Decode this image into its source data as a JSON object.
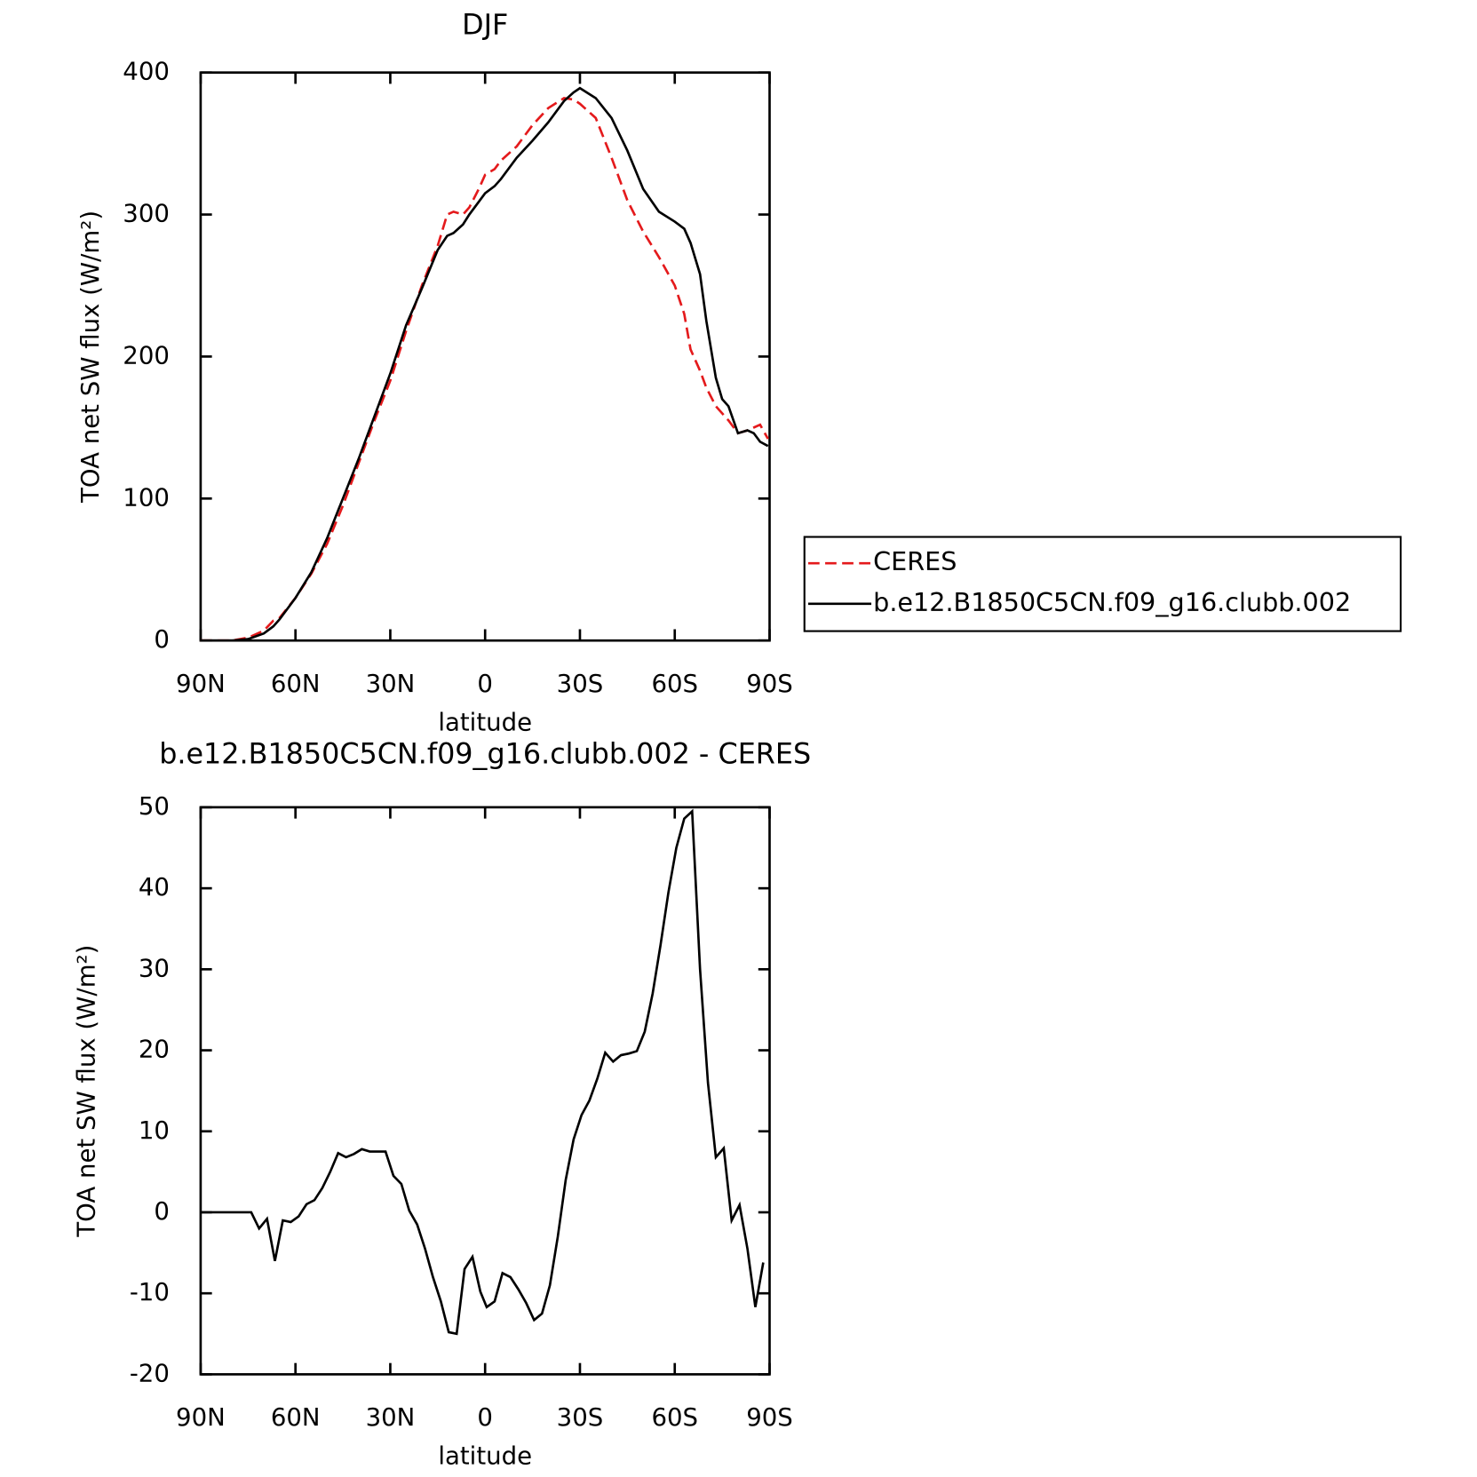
{
  "chart_data": [
    {
      "type": "line",
      "title": "DJF",
      "xlabel": "latitude",
      "ylabel": "TOA net SW flux (W/m²)",
      "x": [
        90,
        85,
        80,
        75,
        70,
        67,
        65,
        60,
        55,
        50,
        45,
        40,
        35,
        30,
        25,
        20,
        15,
        12,
        10,
        7,
        5,
        2,
        0,
        -3,
        -5,
        -10,
        -15,
        -20,
        -25,
        -28,
        -30,
        -35,
        -40,
        -45,
        -50,
        -55,
        -60,
        -63,
        -65,
        -68,
        -70,
        -73,
        -75,
        -77,
        -80,
        -83,
        -85,
        -87,
        -89.5
      ],
      "series": [
        {
          "name": "CERES",
          "color": "#e41a1c",
          "line_style": "dashed",
          "values": [
            0,
            0,
            0,
            2,
            7,
            14,
            16,
            30,
            47,
            68,
            95,
            125,
            155,
            183,
            218,
            250,
            278,
            300,
            302,
            300,
            305,
            318,
            328,
            332,
            338,
            348,
            363,
            375,
            382,
            381,
            378,
            368,
            340,
            310,
            288,
            270,
            250,
            230,
            205,
            190,
            178,
            165,
            160,
            155,
            146,
            148,
            150,
            152,
            142
          ]
        },
        {
          "name": "b.e12.B1850C5CN.f09_g16.clubb.002",
          "color": "#000000",
          "line_style": "solid",
          "values": [
            0,
            0,
            0,
            1,
            5,
            10,
            15,
            30,
            48,
            72,
            100,
            128,
            158,
            188,
            222,
            248,
            275,
            285,
            287,
            293,
            300,
            309,
            315,
            320,
            325,
            340,
            352,
            365,
            380,
            386,
            389,
            382,
            368,
            345,
            318,
            302,
            295,
            290,
            280,
            258,
            225,
            185,
            170,
            165,
            146,
            148,
            146,
            140,
            137
          ]
        }
      ],
      "xlim": [
        90,
        -90
      ],
      "xticks": [
        {
          "value": 90,
          "label": "90N"
        },
        {
          "value": 60,
          "label": "60N"
        },
        {
          "value": 30,
          "label": "30N"
        },
        0,
        {
          "value": -30,
          "label": "30S"
        },
        {
          "value": -60,
          "label": "60S"
        },
        {
          "value": -90,
          "label": "90S"
        }
      ],
      "ylim": [
        0,
        400
      ],
      "yticks": [
        0,
        100,
        200,
        300,
        400
      ],
      "legend": "right"
    },
    {
      "type": "line",
      "title": "b.e12.B1850C5CN.f09_g16.clubb.002 - CERES",
      "xlabel": "latitude",
      "ylabel": "TOA net SW flux (W/m²)",
      "x": [
        90,
        74,
        71.5,
        69,
        66.5,
        64,
        61.5,
        59,
        56.5,
        54,
        51.5,
        49,
        46.5,
        44,
        41.5,
        39,
        36.5,
        34,
        31.5,
        29,
        26.5,
        24,
        21.5,
        19,
        16.5,
        14,
        11.5,
        9,
        6.5,
        4,
        1.5,
        -0.5,
        -3,
        -5.5,
        -8,
        -10.5,
        -13,
        -15.5,
        -18,
        -20.5,
        -23,
        -25.5,
        -28,
        -30.5,
        -33,
        -35.5,
        -38,
        -40.5,
        -43,
        -45.5,
        -48,
        -50.5,
        -53,
        -55.5,
        -58,
        -60.5,
        -63,
        -65.5,
        -68,
        -70.5,
        -73,
        -75.5,
        -78,
        -80.5,
        -83,
        -85.5,
        -88
      ],
      "series": [
        {
          "name": "b.e12.B1850C5CN.f09_g16.clubb.002 - CERES",
          "color": "#000000",
          "line_style": "solid",
          "values": [
            0,
            0,
            -2,
            -0.8,
            -6,
            -1,
            -1.2,
            -0.5,
            1,
            1.5,
            3,
            5,
            7.3,
            6.8,
            7.2,
            7.8,
            7.5,
            7.5,
            7.5,
            4.5,
            3.5,
            0.2,
            -1.5,
            -4.5,
            -8,
            -11,
            -14.8,
            -15,
            -7,
            -5.5,
            -9.8,
            -11.7,
            -11,
            -7.5,
            -8,
            -9.5,
            -11.2,
            -13.3,
            -12.5,
            -9,
            -3,
            4,
            9,
            12,
            13.8,
            16.5,
            19.7,
            18.6,
            19.4,
            19.6,
            19.9,
            22.3,
            27,
            33,
            39.5,
            45,
            48.6,
            49.5,
            30,
            16,
            6.8,
            7.9,
            -1,
            0.9,
            -4.5,
            -11.7,
            -6.2
          ]
        }
      ],
      "xlim": [
        90,
        -90
      ],
      "xticks": [
        {
          "value": 90,
          "label": "90N"
        },
        {
          "value": 60,
          "label": "60N"
        },
        {
          "value": 30,
          "label": "30N"
        },
        0,
        {
          "value": -30,
          "label": "30S"
        },
        {
          "value": -60,
          "label": "60S"
        },
        {
          "value": -90,
          "label": "90S"
        }
      ],
      "ylim": [
        -20,
        50
      ],
      "yticks": [
        -20,
        -10,
        0,
        10,
        20,
        30,
        40,
        50
      ]
    }
  ]
}
